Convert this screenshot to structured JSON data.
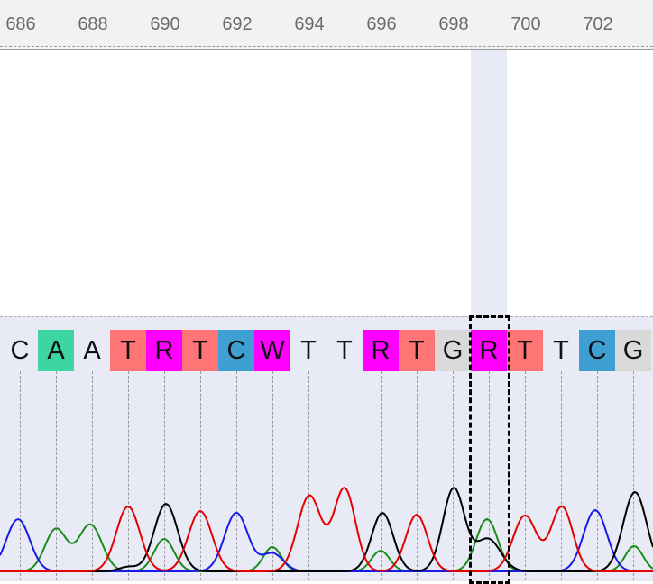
{
  "ruler": {
    "labels": [
      "686",
      "688",
      "690",
      "692",
      "694",
      "696",
      "698",
      "700",
      "702"
    ]
  },
  "sequence": {
    "bases": [
      "C",
      "A",
      "A",
      "T",
      "R",
      "T",
      "C",
      "W",
      "T",
      "T",
      "R",
      "T",
      "G",
      "R",
      "T",
      "T",
      "C",
      "G"
    ],
    "colors": {
      "A": "#3dd6a3",
      "T": "#ff7576",
      "C": "#3e9fd3",
      "G": "#d9d9d9",
      "R": "#ff00ff",
      "W": "#ff00ff"
    },
    "highlighted": [
      false,
      true,
      false,
      true,
      true,
      true,
      true,
      true,
      false,
      false,
      true,
      true,
      true,
      true,
      true,
      false,
      true,
      true
    ],
    "selected_index": 13
  },
  "trace_colors": {
    "A": "#1a8c1a",
    "C": "#1a1ae6",
    "G": "#000000",
    "T": "#e60000"
  }
}
